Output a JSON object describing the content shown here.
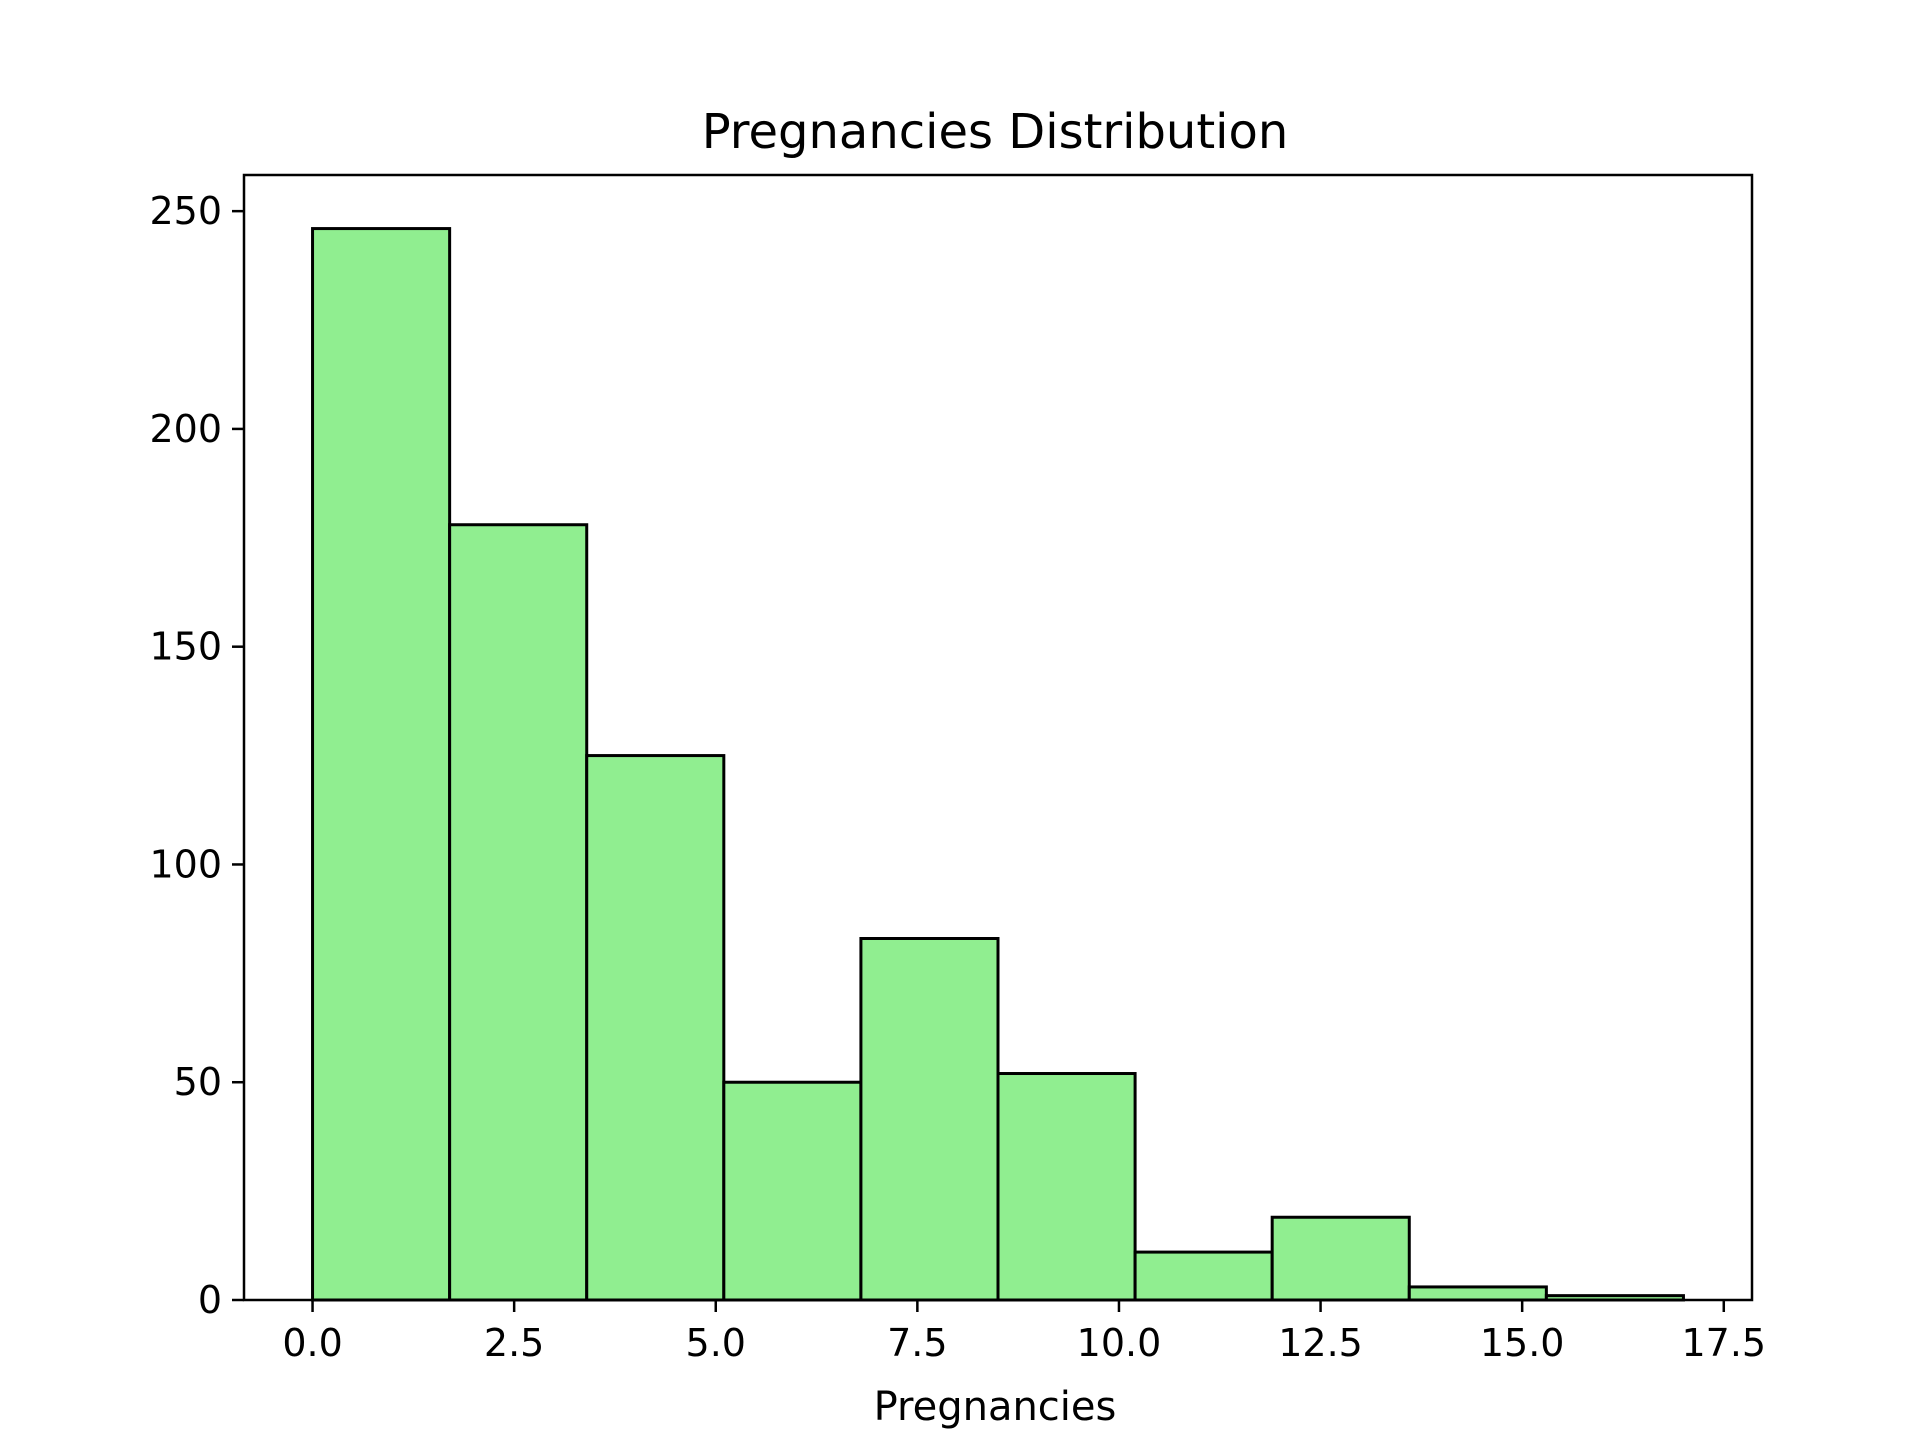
{
  "chart_data": {
    "type": "bar",
    "title": "Pregnancies Distribution",
    "xlabel": "Pregnancies",
    "ylabel": "",
    "xlim": [
      -0.85,
      17.85
    ],
    "ylim": [
      0,
      258.3
    ],
    "xticks": [
      0.0,
      2.5,
      5.0,
      7.5,
      10.0,
      12.5,
      15.0,
      17.5
    ],
    "xtick_labels": [
      "0.0",
      "2.5",
      "5.0",
      "7.5",
      "10.0",
      "12.5",
      "15.0",
      "17.5"
    ],
    "yticks": [
      0,
      50,
      100,
      150,
      200,
      250
    ],
    "ytick_labels": [
      "0",
      "50",
      "100",
      "150",
      "200",
      "250"
    ],
    "bin_edges": [
      0.0,
      1.7,
      3.4,
      5.1,
      6.8,
      8.5,
      10.2,
      11.9,
      13.6,
      15.3,
      17.0
    ],
    "values": [
      246,
      178,
      125,
      50,
      83,
      52,
      11,
      19,
      3,
      1
    ],
    "grid": false,
    "colors": {
      "bar_fill": "#90ee90",
      "bar_edge": "#000000",
      "axes": "#000000",
      "background": "#ffffff"
    }
  }
}
